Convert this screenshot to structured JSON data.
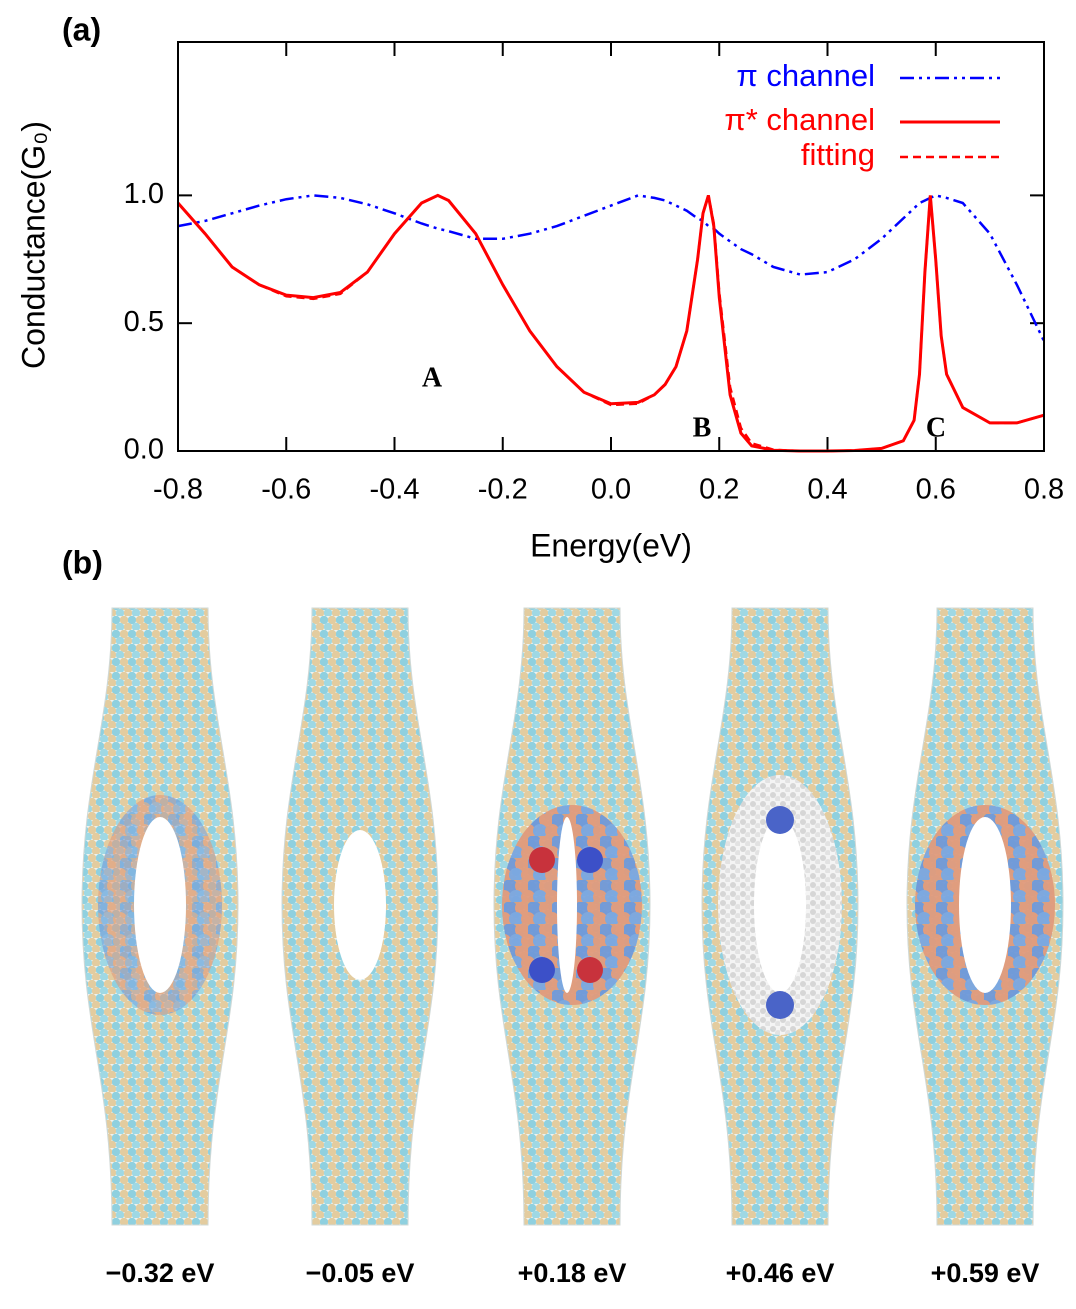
{
  "chart_data": {
    "type": "line",
    "panel_label": "(a)",
    "xlabel": "Energy(eV)",
    "ylabel": "Conductance(G₀)",
    "x": [
      -0.8,
      -0.75,
      -0.7,
      -0.65,
      -0.6,
      -0.55,
      -0.5,
      -0.45,
      -0.4,
      -0.35,
      -0.32,
      -0.3,
      -0.25,
      -0.2,
      -0.15,
      -0.1,
      -0.05,
      0,
      0.05,
      0.08,
      0.1,
      0.12,
      0.14,
      0.16,
      0.17,
      0.18,
      0.19,
      0.2,
      0.22,
      0.24,
      0.26,
      0.3,
      0.35,
      0.4,
      0.45,
      0.5,
      0.54,
      0.56,
      0.57,
      0.58,
      0.59,
      0.6,
      0.61,
      0.62,
      0.65,
      0.7,
      0.75,
      0.8
    ],
    "series": [
      {
        "name": "π channel",
        "color": "#0000ff",
        "dash": "dashdot",
        "values": [
          0.88,
          0.9,
          0.93,
          0.96,
          0.985,
          1.0,
          0.99,
          0.965,
          0.93,
          0.89,
          0.87,
          0.86,
          0.83,
          0.83,
          0.85,
          0.88,
          0.92,
          0.96,
          1.0,
          0.99,
          0.98,
          0.96,
          0.94,
          0.91,
          0.9,
          0.88,
          0.87,
          0.85,
          0.82,
          0.79,
          0.77,
          0.72,
          0.69,
          0.7,
          0.75,
          0.83,
          0.91,
          0.95,
          0.97,
          0.98,
          0.99,
          1.0,
          0.995,
          0.99,
          0.97,
          0.85,
          0.65,
          0.43
        ]
      },
      {
        "name": "π* channel",
        "color": "#ff0000",
        "dash": "solid",
        "values": [
          0.97,
          0.85,
          0.72,
          0.65,
          0.61,
          0.6,
          0.62,
          0.7,
          0.85,
          0.97,
          1.0,
          0.98,
          0.85,
          0.65,
          0.47,
          0.33,
          0.23,
          0.185,
          0.19,
          0.22,
          0.26,
          0.33,
          0.47,
          0.75,
          0.93,
          1.0,
          0.88,
          0.6,
          0.22,
          0.07,
          0.02,
          0.003,
          0,
          0,
          0.002,
          0.01,
          0.04,
          0.12,
          0.3,
          0.7,
          1.0,
          0.75,
          0.45,
          0.3,
          0.17,
          0.11,
          0.11,
          0.14
        ]
      },
      {
        "name": "fitting",
        "color": "#ff0000",
        "dash": "dashed",
        "values": [
          0.97,
          0.85,
          0.72,
          0.65,
          0.605,
          0.595,
          0.615,
          0.7,
          0.85,
          0.97,
          1.0,
          0.98,
          0.85,
          0.65,
          0.47,
          0.33,
          0.23,
          0.18,
          0.185,
          0.22,
          0.26,
          0.33,
          0.47,
          0.75,
          0.93,
          1.0,
          0.89,
          0.62,
          0.25,
          0.09,
          0.03,
          0.005,
          0,
          0,
          0.002,
          0.01,
          0.04,
          0.12,
          0.3,
          0.7,
          1.0,
          0.75,
          0.45,
          0.3,
          0.17,
          0.11,
          0.11,
          0.14
        ]
      }
    ],
    "annotations": [
      "A",
      "B",
      "C"
    ],
    "xlim": [
      -0.8,
      0.8
    ],
    "ylim": [
      0,
      1.6
    ],
    "xticks": [
      -0.8,
      -0.6,
      -0.4,
      -0.2,
      {
        "value": 0,
        "label": "0.0"
      },
      0.2,
      0.4,
      0.6,
      0.8
    ],
    "yticks": [
      {
        "value": 0,
        "label": "0.0"
      },
      0.5,
      {
        "value": 1,
        "label": "1.0"
      }
    ],
    "legend": "upper right"
  },
  "panel_b": {
    "label": "(b)",
    "captions": [
      "−0.32 eV",
      "−0.05 eV",
      "+0.18 eV",
      "+0.46 eV",
      "+0.59 eV"
    ]
  }
}
